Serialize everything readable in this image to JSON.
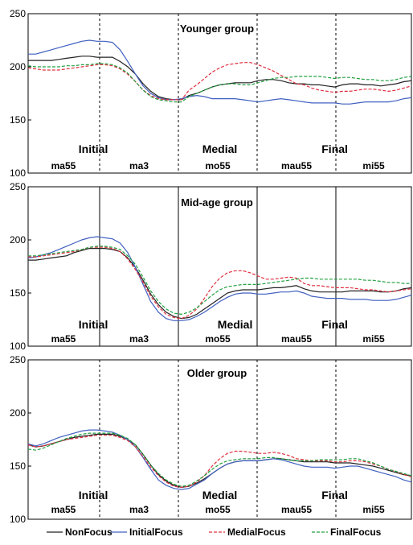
{
  "chart_data": [
    {
      "type": "line",
      "title": "Younger group",
      "ylim": [
        100,
        250
      ],
      "yticks": [
        100,
        150,
        200,
        250
      ],
      "x": [
        0,
        1,
        2,
        3,
        4,
        5,
        6,
        7,
        8,
        9,
        10,
        11,
        12,
        13,
        14,
        15,
        16,
        17,
        18,
        19,
        20,
        21,
        22,
        23,
        24,
        25,
        26,
        27,
        28,
        29,
        30,
        31,
        32,
        33,
        34,
        35,
        36,
        37,
        38,
        39,
        40,
        41,
        42,
        43,
        44,
        45,
        46,
        47,
        48,
        49,
        50
      ],
      "syllables": [
        "ma55",
        "ma3",
        "mo55",
        "mau55",
        "mi55"
      ],
      "regions": [
        {
          "label": "Initial",
          "center": 8.5
        },
        {
          "label": "Medial",
          "center": 25
        },
        {
          "label": "Final",
          "center": 40
        }
      ],
      "series": [
        {
          "name": "NonFocus",
          "color": "#222222",
          "dash": "",
          "values": [
            206,
            206,
            206,
            206,
            207,
            208,
            209,
            210,
            210,
            209,
            209,
            209,
            205,
            200,
            193,
            184,
            177,
            172,
            170,
            169,
            169,
            173,
            175,
            178,
            181,
            183,
            184,
            185,
            185,
            185,
            187,
            188,
            188,
            187,
            185,
            184,
            184,
            183,
            183,
            182,
            181,
            183,
            184,
            184,
            183,
            183,
            182,
            183,
            184,
            186,
            187
          ]
        },
        {
          "name": "InitialFocus",
          "color": "#4060c0",
          "dash": "",
          "values": [
            212,
            212,
            214,
            216,
            218,
            220,
            222,
            224,
            225,
            224,
            224,
            223,
            216,
            205,
            193,
            182,
            175,
            171,
            169,
            169,
            170,
            172,
            173,
            172,
            170,
            170,
            170,
            170,
            169,
            168,
            167,
            168,
            169,
            170,
            169,
            168,
            167,
            166,
            166,
            166,
            166,
            165,
            165,
            166,
            167,
            167,
            167,
            167,
            168,
            170,
            171
          ]
        },
        {
          "name": "MedialFocus",
          "color": "#e03040",
          "dash": "4,2",
          "values": [
            199,
            198,
            197,
            197,
            197,
            198,
            199,
            200,
            201,
            202,
            202,
            201,
            198,
            193,
            186,
            178,
            173,
            170,
            169,
            169,
            169,
            178,
            183,
            189,
            195,
            199,
            202,
            203,
            204,
            204,
            202,
            199,
            196,
            192,
            188,
            184,
            183,
            180,
            178,
            177,
            176,
            177,
            177,
            178,
            179,
            179,
            178,
            177,
            178,
            180,
            182
          ]
        },
        {
          "name": "FinalFocus",
          "color": "#20a040",
          "dash": "4,2",
          "values": [
            201,
            200,
            200,
            200,
            200,
            201,
            201,
            202,
            202,
            203,
            203,
            202,
            199,
            194,
            186,
            178,
            172,
            169,
            168,
            167,
            167,
            172,
            175,
            178,
            181,
            183,
            184,
            184,
            183,
            183,
            185,
            187,
            189,
            190,
            190,
            191,
            191,
            191,
            191,
            190,
            189,
            190,
            190,
            189,
            188,
            188,
            187,
            187,
            188,
            190,
            191
          ]
        }
      ]
    },
    {
      "type": "line",
      "title": "Mid-age group",
      "ylim": [
        100,
        250
      ],
      "yticks": [
        100,
        150,
        200,
        250
      ],
      "x": [
        0,
        1,
        2,
        3,
        4,
        5,
        6,
        7,
        8,
        9,
        10,
        11,
        12,
        13,
        14,
        15,
        16,
        17,
        18,
        19,
        20,
        21,
        22,
        23,
        24,
        25,
        26,
        27,
        28,
        29,
        30,
        31,
        32,
        33,
        34,
        35,
        36,
        37,
        38,
        39,
        40,
        41,
        42,
        43,
        44,
        45,
        46,
        47,
        48,
        49,
        50
      ],
      "syllables": [
        "ma55",
        "ma3",
        "mo55",
        "mau55",
        "mi55"
      ],
      "regions": [
        {
          "label": "Initial",
          "center": 8.5
        },
        {
          "label": "Medial",
          "center": 27
        },
        {
          "label": "Final",
          "center": 40
        }
      ],
      "series": [
        {
          "name": "NonFocus",
          "color": "#222222",
          "dash": "",
          "values": [
            181,
            181,
            182,
            183,
            184,
            185,
            188,
            190,
            192,
            192,
            192,
            191,
            189,
            183,
            174,
            162,
            149,
            139,
            132,
            128,
            126,
            127,
            130,
            135,
            140,
            145,
            150,
            152,
            153,
            153,
            153,
            154,
            155,
            155,
            156,
            157,
            154,
            152,
            151,
            151,
            151,
            151,
            152,
            152,
            152,
            152,
            151,
            151,
            152,
            154,
            155
          ]
        },
        {
          "name": "InitialFocus",
          "color": "#4060c0",
          "dash": "",
          "values": [
            183,
            184,
            186,
            188,
            191,
            194,
            197,
            200,
            202,
            203,
            202,
            201,
            197,
            188,
            174,
            158,
            142,
            132,
            126,
            124,
            124,
            125,
            128,
            132,
            137,
            142,
            146,
            149,
            150,
            150,
            149,
            149,
            150,
            151,
            151,
            152,
            150,
            147,
            146,
            145,
            145,
            145,
            144,
            144,
            144,
            143,
            143,
            143,
            144,
            146,
            148
          ]
        },
        {
          "name": "MedialFocus",
          "color": "#e03040",
          "dash": "4,2",
          "values": [
            184,
            184,
            185,
            186,
            187,
            188,
            189,
            191,
            193,
            193,
            193,
            192,
            189,
            182,
            172,
            160,
            147,
            137,
            130,
            127,
            126,
            129,
            135,
            145,
            156,
            164,
            169,
            171,
            171,
            169,
            166,
            163,
            163,
            164,
            165,
            164,
            159,
            157,
            157,
            156,
            155,
            155,
            155,
            154,
            153,
            153,
            152,
            151,
            152,
            153,
            154
          ]
        },
        {
          "name": "FinalFocus",
          "color": "#20a040",
          "dash": "4,2",
          "values": [
            185,
            185,
            186,
            187,
            188,
            189,
            190,
            191,
            193,
            194,
            194,
            193,
            191,
            185,
            177,
            165,
            152,
            142,
            135,
            131,
            130,
            132,
            136,
            142,
            148,
            153,
            156,
            157,
            158,
            158,
            158,
            159,
            160,
            161,
            162,
            163,
            164,
            164,
            163,
            163,
            163,
            163,
            163,
            163,
            162,
            162,
            161,
            160,
            160,
            159,
            159
          ]
        }
      ]
    },
    {
      "type": "line",
      "title": "Older group",
      "ylim": [
        100,
        250
      ],
      "yticks": [
        100,
        150,
        200,
        250
      ],
      "x": [
        0,
        1,
        2,
        3,
        4,
        5,
        6,
        7,
        8,
        9,
        10,
        11,
        12,
        13,
        14,
        15,
        16,
        17,
        18,
        19,
        20,
        21,
        22,
        23,
        24,
        25,
        26,
        27,
        28,
        29,
        30,
        31,
        32,
        33,
        34,
        35,
        36,
        37,
        38,
        39,
        40,
        41,
        42,
        43,
        44,
        45,
        46,
        47,
        48,
        49,
        50
      ],
      "syllables": [
        "ma55",
        "ma3",
        "mo55",
        "mau55",
        "mi55"
      ],
      "regions": [
        {
          "label": "Initial",
          "center": 8.5
        },
        {
          "label": "Medial",
          "center": 25
        },
        {
          "label": "Final",
          "center": 40
        }
      ],
      "series": [
        {
          "name": "NonFocus",
          "color": "#222222",
          "dash": "",
          "values": [
            170,
            168,
            169,
            171,
            173,
            175,
            177,
            178,
            179,
            180,
            180,
            180,
            178,
            175,
            170,
            161,
            151,
            142,
            136,
            132,
            130,
            131,
            134,
            138,
            143,
            148,
            152,
            154,
            155,
            155,
            155,
            156,
            157,
            157,
            156,
            155,
            154,
            154,
            154,
            154,
            153,
            153,
            153,
            152,
            151,
            150,
            148,
            146,
            144,
            142,
            141
          ]
        },
        {
          "name": "InitialFocus",
          "color": "#4060c0",
          "dash": "",
          "values": [
            171,
            169,
            171,
            174,
            177,
            179,
            181,
            183,
            184,
            184,
            183,
            182,
            179,
            175,
            168,
            158,
            147,
            137,
            132,
            129,
            128,
            129,
            133,
            137,
            143,
            148,
            152,
            154,
            155,
            155,
            155,
            156,
            157,
            156,
            154,
            152,
            150,
            149,
            149,
            149,
            148,
            149,
            150,
            150,
            148,
            146,
            144,
            142,
            140,
            137,
            135
          ]
        },
        {
          "name": "MedialFocus",
          "color": "#e03040",
          "dash": "4,2",
          "values": [
            170,
            168,
            169,
            171,
            173,
            175,
            176,
            177,
            178,
            179,
            179,
            179,
            177,
            174,
            168,
            159,
            149,
            141,
            135,
            131,
            130,
            131,
            135,
            141,
            150,
            157,
            162,
            164,
            164,
            163,
            162,
            162,
            163,
            162,
            160,
            157,
            156,
            155,
            155,
            155,
            154,
            154,
            155,
            155,
            154,
            152,
            150,
            147,
            145,
            142,
            140
          ]
        },
        {
          "name": "FinalFocus",
          "color": "#20a040",
          "dash": "4,2",
          "values": [
            166,
            165,
            167,
            170,
            173,
            176,
            178,
            180,
            181,
            181,
            181,
            181,
            179,
            176,
            170,
            161,
            151,
            143,
            137,
            133,
            131,
            132,
            136,
            141,
            147,
            152,
            155,
            156,
            157,
            157,
            157,
            158,
            158,
            157,
            156,
            155,
            155,
            155,
            156,
            156,
            156,
            156,
            157,
            157,
            155,
            153,
            150,
            147,
            145,
            143,
            141
          ]
        }
      ]
    }
  ],
  "legend": [
    {
      "name": "NonFocus",
      "color": "#222222",
      "dash": ""
    },
    {
      "name": "InitialFocus",
      "color": "#4060c0",
      "dash": ""
    },
    {
      "name": "MedialFocus",
      "color": "#e03040",
      "dash": "4,2"
    },
    {
      "name": "FinalFocus",
      "color": "#20a040",
      "dash": "4,2"
    }
  ]
}
